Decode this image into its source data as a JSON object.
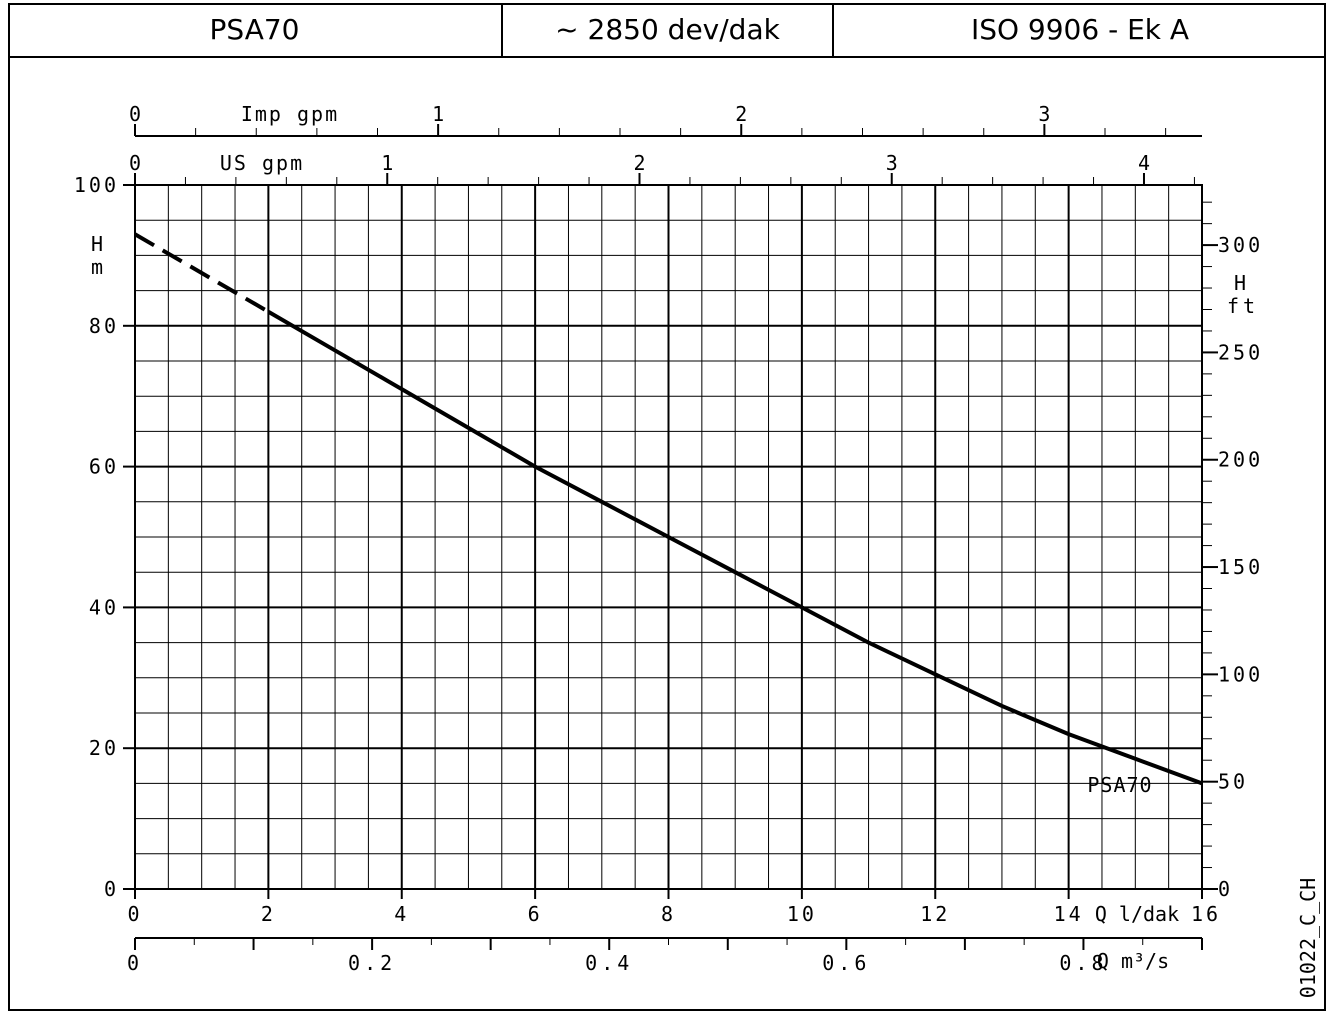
{
  "header": {
    "model": "PSA70",
    "speed": "~ 2850 dev/dak",
    "standard": "ISO 9906 - Ek A"
  },
  "chart_data": {
    "type": "line",
    "title": "",
    "x_primary": {
      "label": "Q l/dak",
      "range": [
        0,
        16
      ],
      "ticks": [
        "0",
        "2",
        "4",
        "6",
        "8",
        "10",
        "12",
        "14",
        "16"
      ]
    },
    "x_m3s": {
      "label": "Q m³/s",
      "range": [
        0,
        0.9
      ],
      "ticks": [
        "0",
        "0.2",
        "0.4",
        "0.6",
        "0.8"
      ]
    },
    "x_us_gpm": {
      "label": "US gpm",
      "range": [
        0,
        4.23
      ],
      "ticks": [
        "0",
        "1",
        "2",
        "3",
        "4"
      ]
    },
    "x_imp_gpm": {
      "label": "Imp gpm",
      "range": [
        0,
        3.52
      ],
      "ticks": [
        "0",
        "1",
        "2",
        "3"
      ]
    },
    "y_left": {
      "label_line1": "H",
      "label_line2": "m",
      "range": [
        0,
        100
      ],
      "ticks": [
        "0",
        "20",
        "40",
        "60",
        "80",
        "100"
      ]
    },
    "y_right": {
      "label_line1": "H",
      "label_line2": "ft",
      "range": [
        0,
        328
      ],
      "ticks": [
        "0",
        "50",
        "100",
        "150",
        "200",
        "250",
        "300"
      ]
    },
    "grid": true,
    "series": [
      {
        "name": "PSA70",
        "dashed_until_x": 2,
        "x": [
          0,
          1,
          2,
          3,
          4,
          5,
          6,
          7,
          8,
          9,
          10,
          11,
          12,
          13,
          14,
          15,
          16
        ],
        "y": [
          93,
          87.5,
          82,
          76.5,
          71,
          65.5,
          60,
          55,
          50,
          45,
          40,
          35,
          30.5,
          26,
          22,
          18.5,
          15
        ]
      }
    ],
    "figure_code": "01022_C_CH"
  }
}
